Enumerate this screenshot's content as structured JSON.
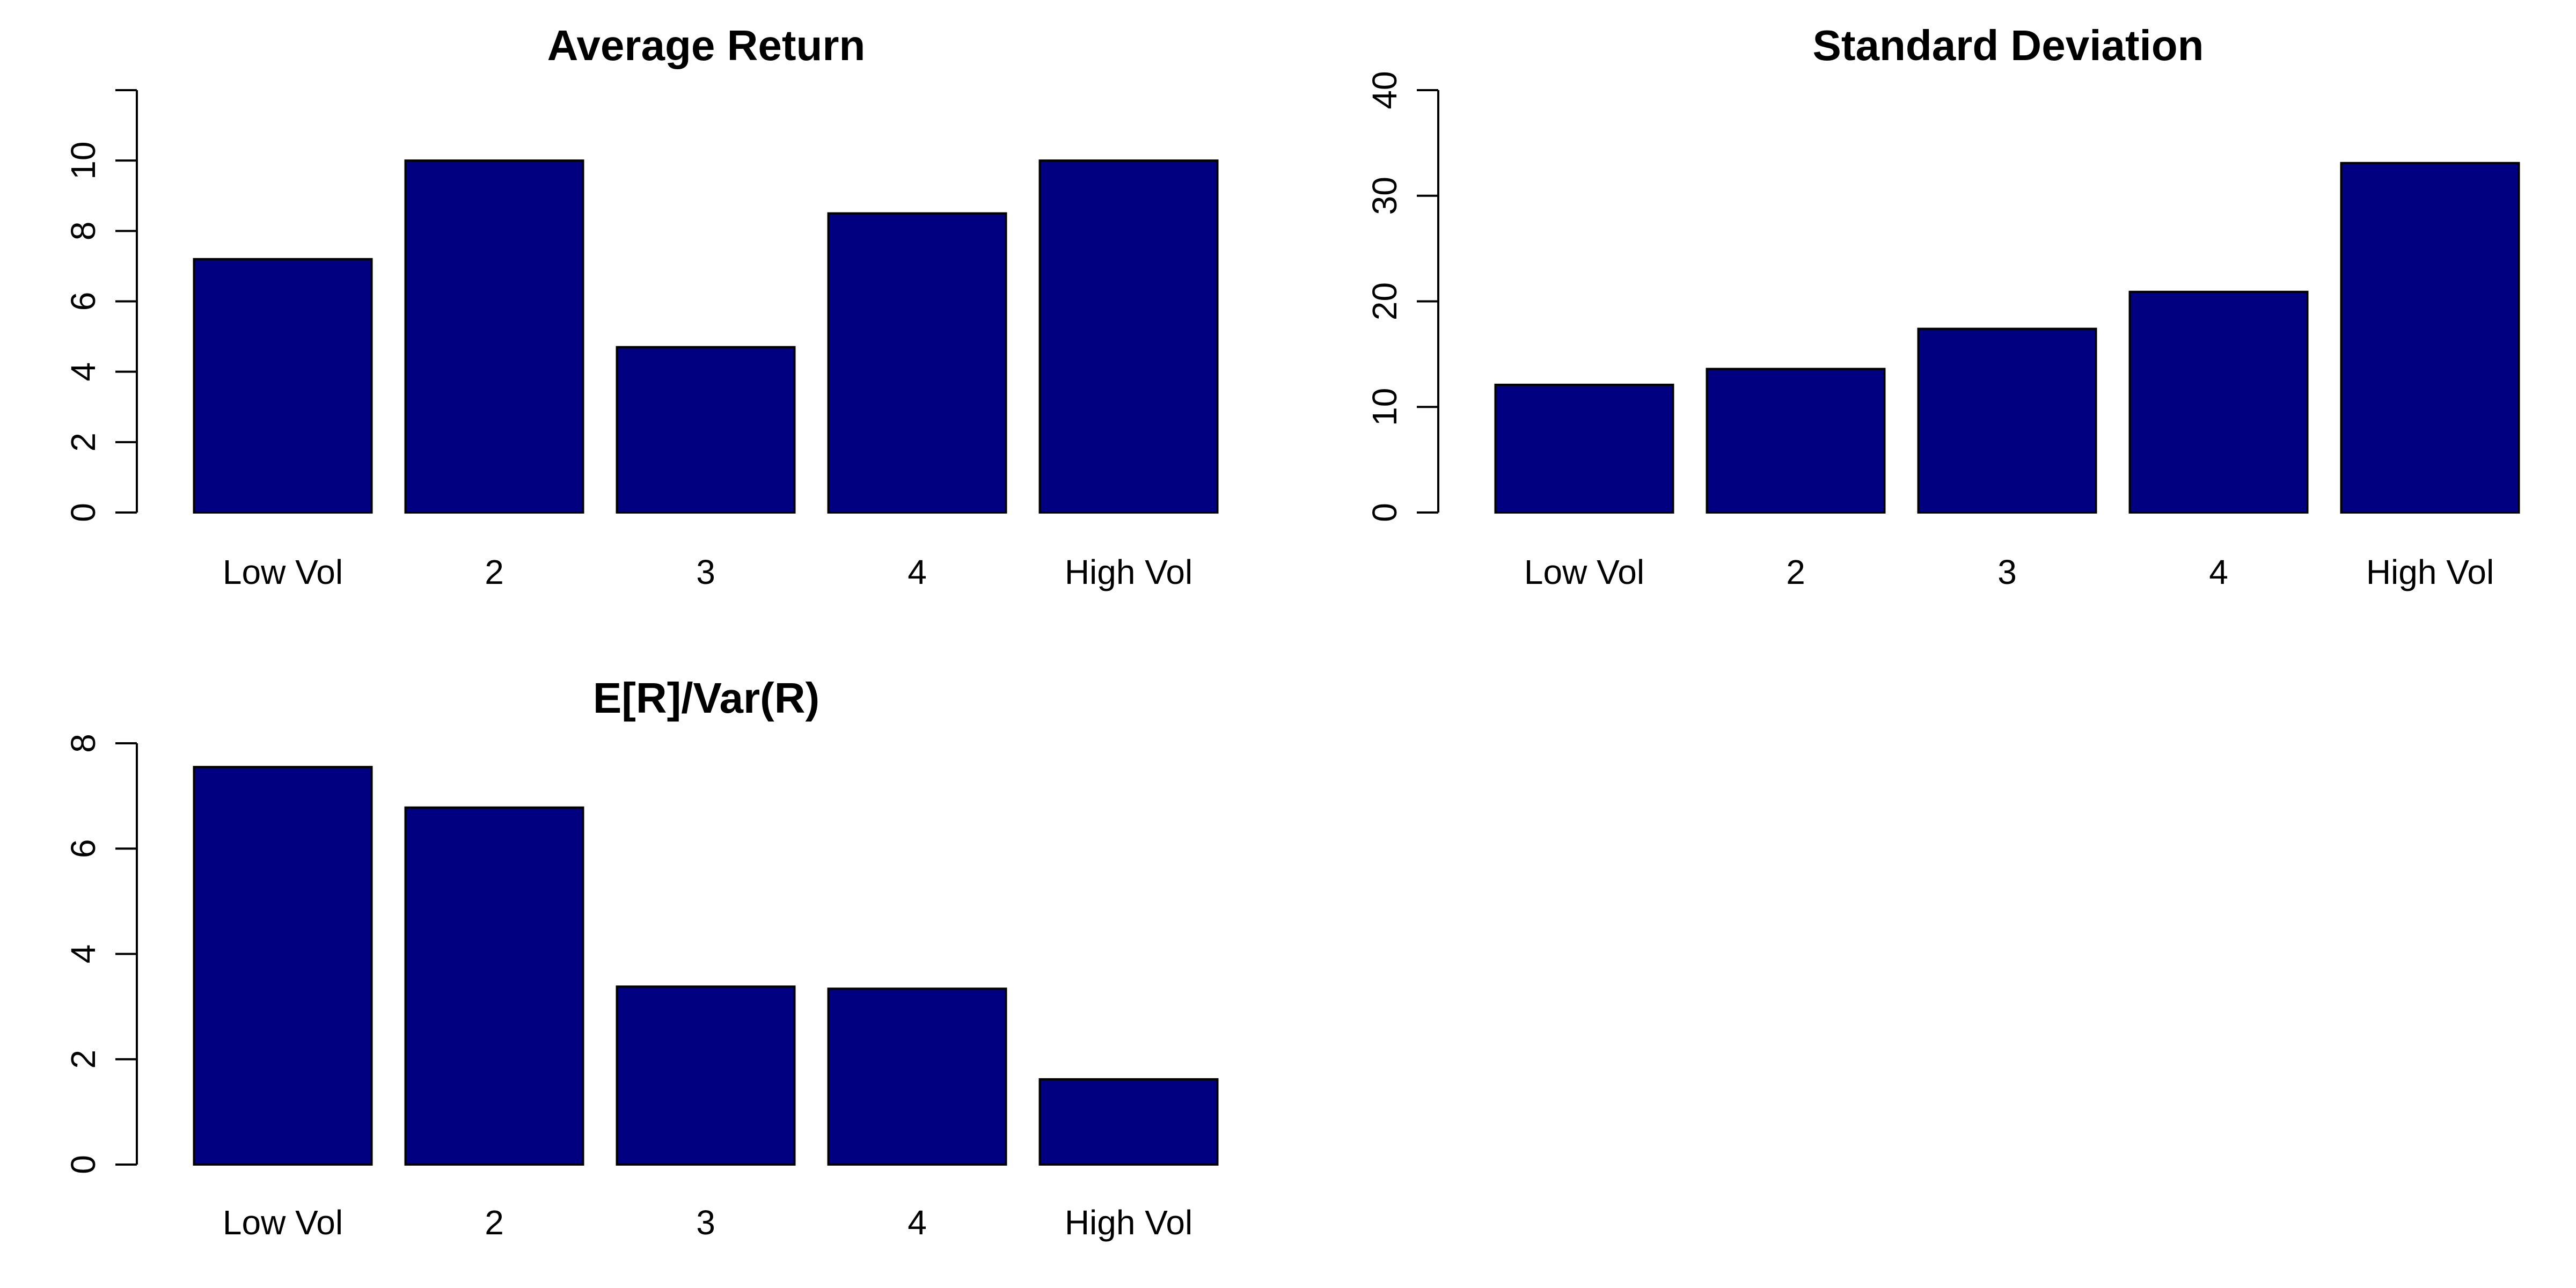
{
  "chart_data": [
    {
      "type": "bar",
      "title": "Average Return",
      "categories": [
        "Low Vol",
        "2",
        "3",
        "4",
        "High Vol"
      ],
      "values": [
        7.2,
        10.0,
        4.7,
        8.5,
        10.0
      ],
      "ylim": [
        0,
        12
      ],
      "yticks": [
        0,
        2,
        4,
        6,
        8,
        10
      ],
      "xlabel": "",
      "ylabel": "",
      "bar_color": "#000080",
      "grid": false,
      "legend": "none"
    },
    {
      "type": "bar",
      "title": "Standard Deviation",
      "categories": [
        "Low Vol",
        "2",
        "3",
        "4",
        "High Vol"
      ],
      "values": [
        12.1,
        13.6,
        17.4,
        20.9,
        33.1
      ],
      "ylim": [
        0,
        40
      ],
      "yticks": [
        0,
        10,
        20,
        30,
        40
      ],
      "xlabel": "",
      "ylabel": "",
      "bar_color": "#000080",
      "grid": false,
      "legend": "none"
    },
    {
      "type": "bar",
      "title": "E[R]/Var(R)",
      "categories": [
        "Low Vol",
        "2",
        "3",
        "4",
        "High Vol"
      ],
      "values": [
        7.55,
        6.78,
        3.38,
        3.34,
        1.62
      ],
      "ylim": [
        0,
        8
      ],
      "yticks": [
        0,
        2,
        4,
        6,
        8
      ],
      "xlabel": "",
      "ylabel": "",
      "bar_color": "#000080",
      "grid": false,
      "legend": "none"
    }
  ]
}
